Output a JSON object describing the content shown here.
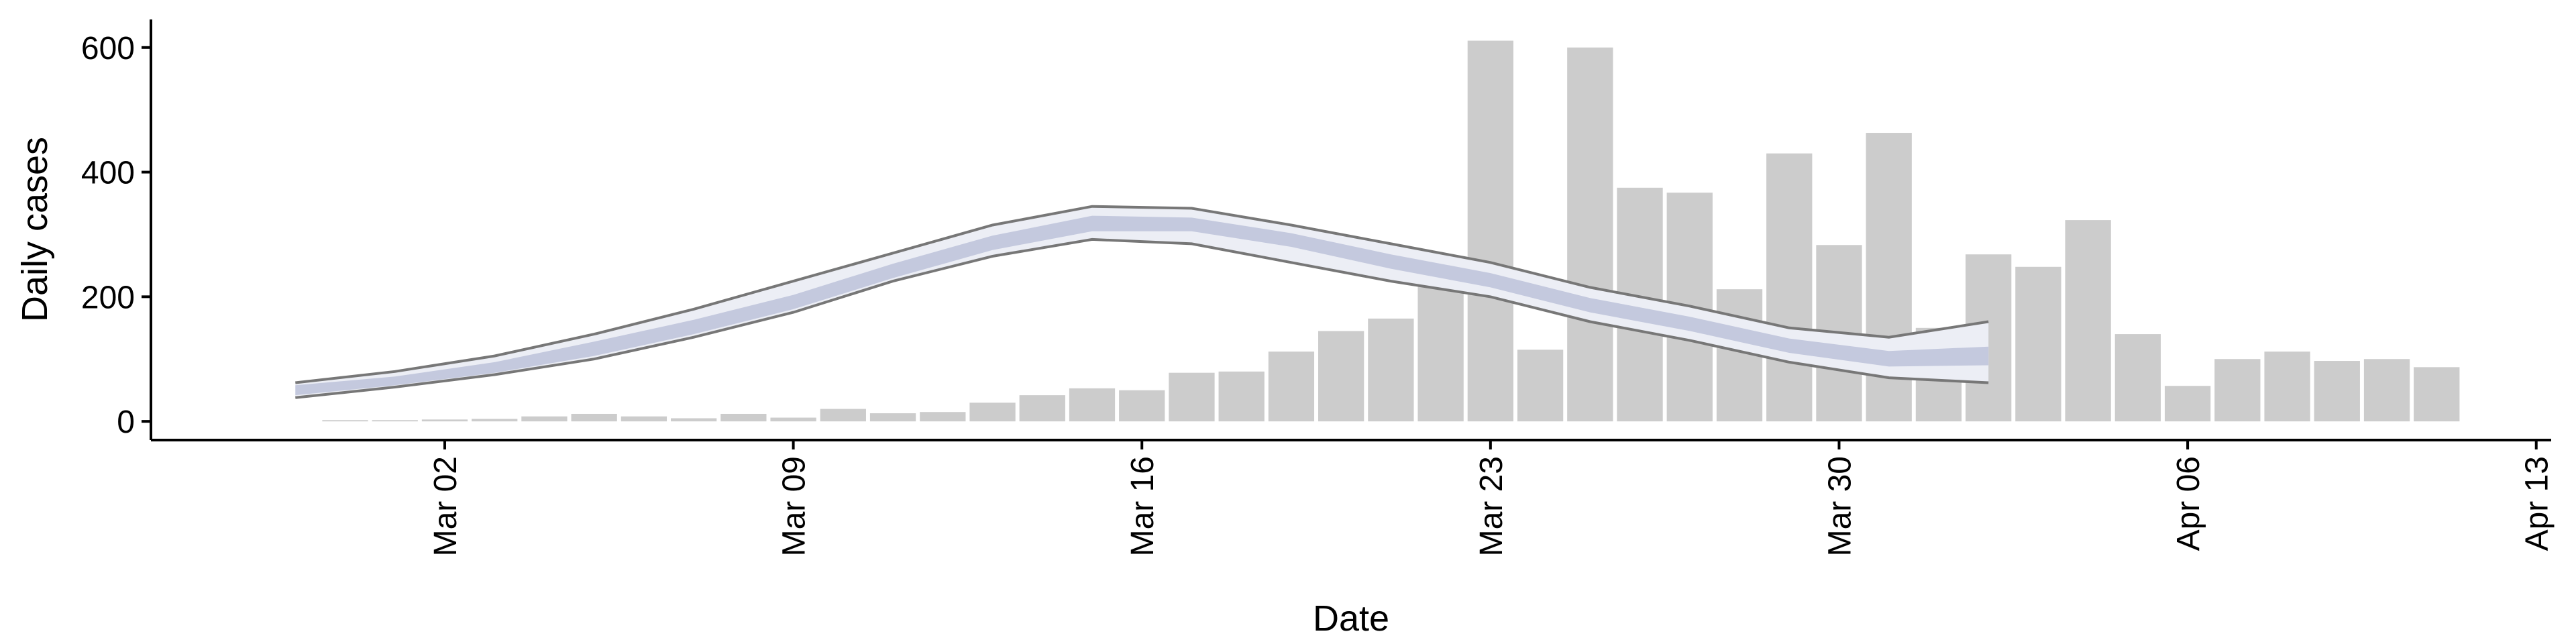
{
  "chart_data": {
    "type": "bar",
    "xlabel": "Date",
    "ylabel": "Daily cases",
    "x": [
      0,
      1,
      2,
      3,
      4,
      5,
      6,
      7,
      8,
      9,
      10,
      11,
      12,
      13,
      14,
      15,
      16,
      17,
      18,
      19,
      20,
      21,
      22,
      23,
      24,
      25,
      26,
      27,
      28,
      29,
      30,
      31,
      32,
      33,
      34,
      35,
      36,
      37,
      38,
      39,
      40,
      41,
      42
    ],
    "values": [
      2,
      2,
      3,
      4,
      8,
      12,
      8,
      5,
      12,
      6,
      20,
      13,
      15,
      30,
      42,
      53,
      50,
      78,
      80,
      112,
      145,
      165,
      225,
      611,
      115,
      600,
      375,
      367,
      212,
      430,
      283,
      463,
      150,
      268,
      248,
      323,
      140,
      57,
      100,
      112,
      97,
      100,
      87
    ],
    "color": "#cccccc",
    "xlim": [
      -3.9,
      44.3
    ],
    "ylim": [
      -30,
      645
    ],
    "xticks": [
      {
        "value": 2,
        "label": "Mar 02"
      },
      {
        "value": 9,
        "label": "Mar 09"
      },
      {
        "value": 16,
        "label": "Mar 16"
      },
      {
        "value": 23,
        "label": "Mar 23"
      },
      {
        "value": 30,
        "label": "Mar 30"
      },
      {
        "value": 37,
        "label": "Apr 06"
      },
      {
        "value": 44,
        "label": "Apr 13"
      }
    ],
    "yticks": [
      0,
      200,
      400,
      600
    ],
    "ribbons": {
      "x": [
        -1,
        1,
        3,
        5,
        7,
        9,
        11,
        13,
        15,
        17,
        19,
        21,
        23,
        25,
        27,
        29,
        31,
        33
      ],
      "outer": {
        "lower": [
          38,
          55,
          75,
          100,
          135,
          175,
          225,
          265,
          292,
          285,
          255,
          225,
          200,
          160,
          130,
          95,
          70,
          62
        ],
        "upper": [
          62,
          80,
          105,
          140,
          180,
          225,
          270,
          315,
          345,
          342,
          315,
          285,
          255,
          215,
          185,
          150,
          135,
          160
        ],
        "color": "#eceef5",
        "line_color": "#777777"
      },
      "inner": {
        "lower": [
          42,
          58,
          78,
          105,
          140,
          180,
          230,
          275,
          305,
          305,
          280,
          245,
          215,
          175,
          145,
          110,
          88,
          90
        ],
        "upper": [
          58,
          72,
          95,
          128,
          163,
          203,
          253,
          298,
          330,
          327,
          302,
          268,
          238,
          198,
          168,
          133,
          113,
          120
        ],
        "color": "#c4c9de"
      }
    }
  }
}
